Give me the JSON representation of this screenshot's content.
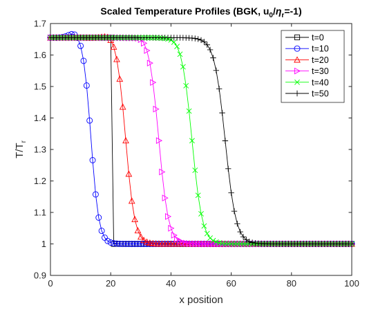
{
  "chart_data": {
    "type": "line",
    "title": "Scaled Temperature Profiles (BGK, u₀/ηᵣ=-1)",
    "title_parts": [
      "Scaled Temperature Profiles (BGK, u",
      "0",
      "/",
      "η",
      "r",
      "=-1)"
    ],
    "xlabel": "x position",
    "ylabel_parts": [
      "T/T",
      "r"
    ],
    "xlim": [
      0,
      100
    ],
    "ylim": [
      0.9,
      1.7
    ],
    "xticks": [
      "0",
      "20",
      "40",
      "60",
      "80",
      "100"
    ],
    "yticks": [
      "0.9",
      "1",
      "1.1",
      "1.2",
      "1.3",
      "1.4",
      "1.5",
      "1.6",
      "1.7"
    ],
    "grid": false,
    "legend_position": "top-right",
    "x_range": [
      0,
      100,
      1
    ],
    "series": [
      {
        "name": "t=0",
        "color": "#000000",
        "marker": "square",
        "y_low": 1.0,
        "y_high": 1.655,
        "front": 20.5,
        "width": 0.01,
        "bump": 0
      },
      {
        "name": "t=10",
        "color": "#0000ff",
        "marker": "circle",
        "y_low": 1.0,
        "y_high": 1.655,
        "front": 13.5,
        "width": 1.3,
        "bump": 0.02
      },
      {
        "name": "t=20",
        "color": "#ff0000",
        "marker": "triangle-up",
        "y_low": 1.0,
        "y_high": 1.655,
        "front": 25.0,
        "width": 1.5,
        "bump": 0.015
      },
      {
        "name": "t=30",
        "color": "#ff00ff",
        "marker": "triangle-right",
        "y_low": 1.0,
        "y_high": 1.655,
        "front": 36.0,
        "width": 1.6,
        "bump": 0.01
      },
      {
        "name": "t=40",
        "color": "#00ff00",
        "marker": "x",
        "y_low": 1.0,
        "y_high": 1.655,
        "front": 47.0,
        "width": 1.7,
        "bump": 0.005
      },
      {
        "name": "t=50",
        "color": "#000000",
        "marker": "plus",
        "y_low": 1.0,
        "y_high": 1.655,
        "front": 58.0,
        "width": 1.8,
        "bump": 0
      }
    ]
  }
}
